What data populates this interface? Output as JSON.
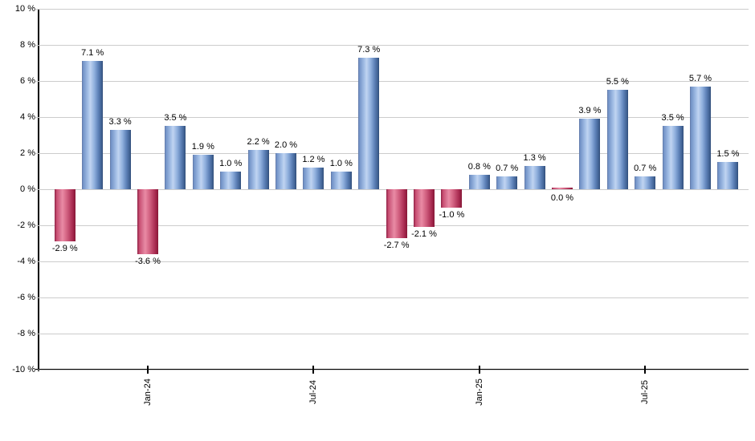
{
  "chart_data": {
    "type": "bar",
    "unit": "%",
    "values": [
      -2.9,
      7.1,
      3.3,
      -3.6,
      3.5,
      1.9,
      1.0,
      2.2,
      2.0,
      1.2,
      1.0,
      7.3,
      -2.7,
      -2.1,
      -1.0,
      0.8,
      0.7,
      1.3,
      0.0,
      3.9,
      5.5,
      0.7,
      3.5,
      5.7,
      1.5
    ],
    "bar_labels": [
      "-2.9 %",
      "7.1 %",
      "3.3 %",
      "-3.6 %",
      "3.5 %",
      "1.9 %",
      "1.0 %",
      "2.2 %",
      "2.0 %",
      "1.2 %",
      "1.0 %",
      "7.3 %",
      "-2.7 %",
      "-2.1 %",
      "-1.0 %",
      "0.8 %",
      "0.7 %",
      "1.3 %",
      "0.0 %",
      "3.9 %",
      "5.5 %",
      "0.7 %",
      "3.5 %",
      "5.7 %",
      "1.5 %"
    ],
    "x_tick_labels": [
      {
        "index": 3,
        "label": "Jan-24"
      },
      {
        "index": 9,
        "label": "Jul-24"
      },
      {
        "index": 15,
        "label": "Jan-25"
      },
      {
        "index": 21,
        "label": "Jul-25"
      }
    ],
    "y_tick_labels": [
      "10 %",
      "8 %",
      "6 %",
      "4 %",
      "2 %",
      "0 %",
      "-2 %",
      "-4 %",
      "-6 %",
      "-8 %",
      "-10 %"
    ],
    "ylim": [
      -10,
      10
    ],
    "y_step": 2,
    "grid": true,
    "legend": "none",
    "colors": {
      "positive_bar_stops": [
        "#60719c 0%",
        "#6e8fc4 4%",
        "#a6c1e8 30%",
        "#c0d4f1 40%",
        "#8fafdd 60%",
        "#5f83b9 78%",
        "#3a5b8c 96%",
        "#2f4a73 100%"
      ],
      "negative_bar_stops": [
        "#8f2245 0%",
        "#c84e72 10%",
        "#e0809c 32%",
        "#ea8aa4 38%",
        "#d05f7f 60%",
        "#aa2c52 85%",
        "#871737 100%"
      ],
      "grid": "#cccccc",
      "axis": "#000000",
      "label": "#000000",
      "background": "#ffffff"
    }
  }
}
